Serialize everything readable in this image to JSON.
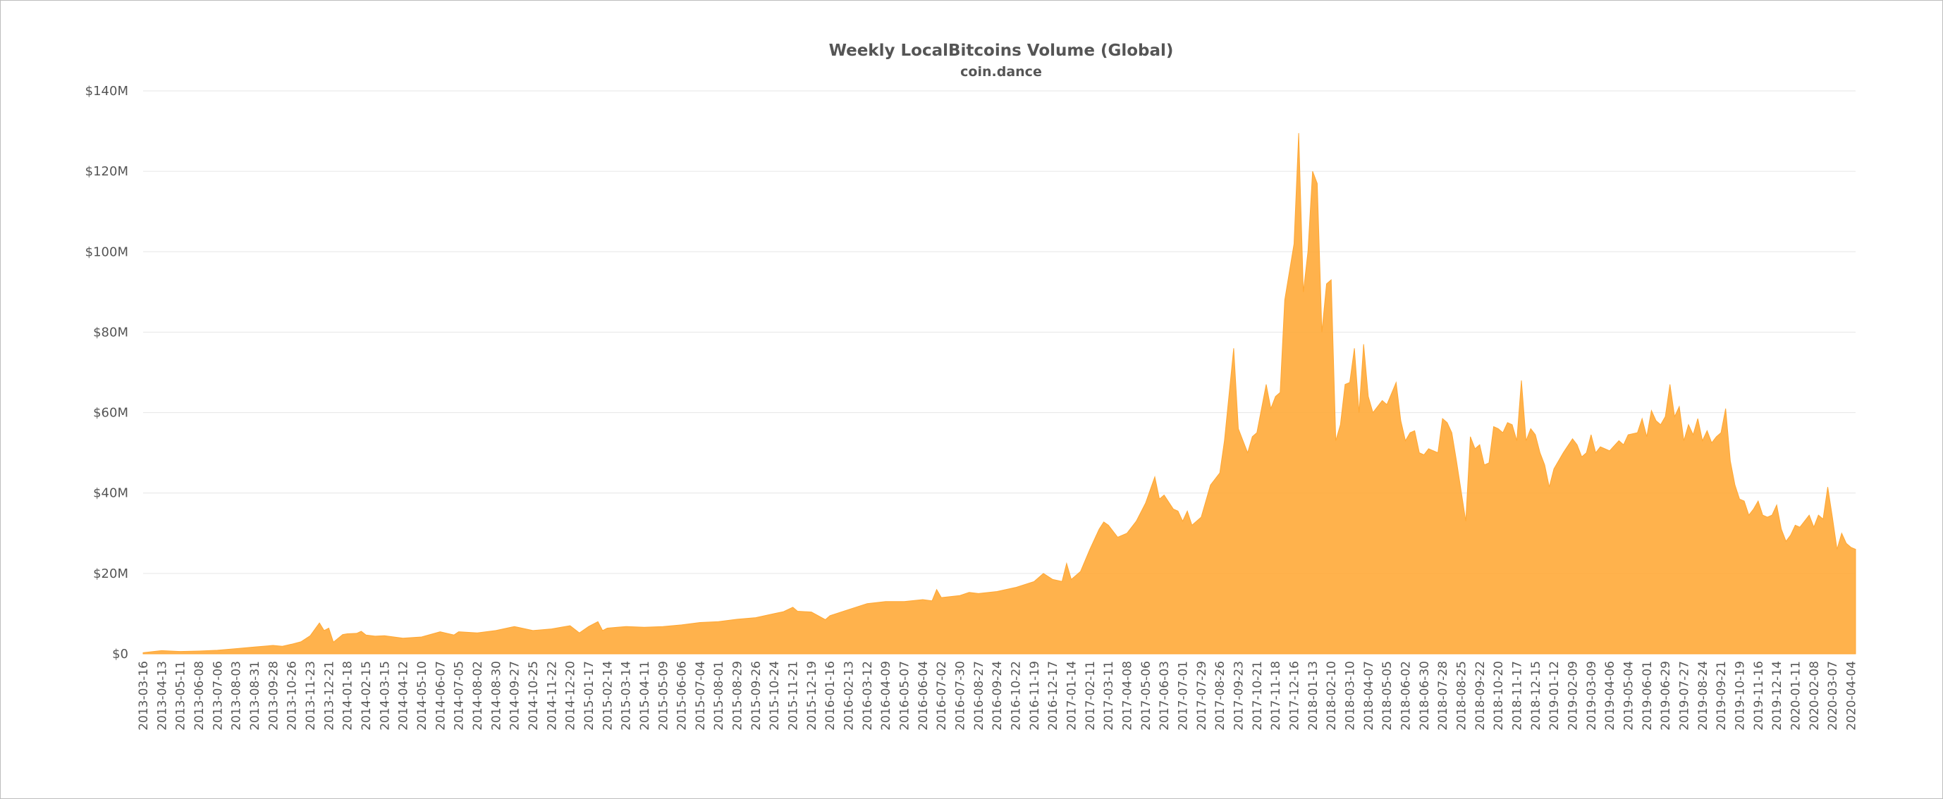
{
  "chart_data": {
    "type": "area",
    "title": "Weekly LocalBitcoins Volume (Global)",
    "subtitle": "coin.dance",
    "xlabel": "",
    "ylabel": "",
    "grid": true,
    "legend": "none",
    "color": "#ffa733",
    "ylim": [
      0,
      140000000
    ],
    "yticks": [
      0,
      20000000,
      40000000,
      60000000,
      80000000,
      100000000,
      120000000,
      140000000
    ],
    "ytick_labels": [
      "$0",
      "$20M",
      "$40M",
      "$60M",
      "$80M",
      "$100M",
      "$120M",
      "$140M"
    ],
    "x_start": "2013-03-16",
    "x_end": "2020-04-11",
    "xtick_labels": [
      "2013-03-16",
      "2013-04-13",
      "2013-05-11",
      "2013-06-08",
      "2013-07-06",
      "2013-08-03",
      "2013-08-31",
      "2013-09-28",
      "2013-10-26",
      "2013-11-23",
      "2013-12-21",
      "2014-01-18",
      "2014-02-15",
      "2014-03-15",
      "2014-04-12",
      "2014-05-10",
      "2014-06-07",
      "2014-07-05",
      "2014-08-02",
      "2014-08-30",
      "2014-09-27",
      "2014-10-25",
      "2014-11-22",
      "2014-12-20",
      "2015-01-17",
      "2015-02-14",
      "2015-03-14",
      "2015-04-11",
      "2015-05-09",
      "2015-06-06",
      "2015-07-04",
      "2015-08-01",
      "2015-08-29",
      "2015-09-26",
      "2015-10-24",
      "2015-11-21",
      "2015-12-19",
      "2016-01-16",
      "2016-02-13",
      "2016-03-12",
      "2016-04-09",
      "2016-05-07",
      "2016-06-04",
      "2016-07-02",
      "2016-07-30",
      "2016-08-27",
      "2016-09-24",
      "2016-10-22",
      "2016-11-19",
      "2016-12-17",
      "2017-01-14",
      "2017-02-11",
      "2017-03-11",
      "2017-04-08",
      "2017-05-06",
      "2017-06-03",
      "2017-07-01",
      "2017-07-29",
      "2017-08-26",
      "2017-09-23",
      "2017-10-21",
      "2017-11-18",
      "2017-12-16",
      "2018-01-13",
      "2018-02-10",
      "2018-03-10",
      "2018-04-07",
      "2018-05-05",
      "2018-06-02",
      "2018-06-30",
      "2018-07-28",
      "2018-08-25",
      "2018-09-22",
      "2018-10-20",
      "2018-11-17",
      "2018-12-15",
      "2019-01-12",
      "2019-02-09",
      "2019-03-09",
      "2019-04-06",
      "2019-05-04",
      "2019-06-01",
      "2019-06-29",
      "2019-07-27",
      "2019-08-24",
      "2019-09-21",
      "2019-10-19",
      "2019-11-16",
      "2019-12-14",
      "2020-01-11",
      "2020-02-08",
      "2020-03-07",
      "2020-04-04"
    ],
    "series": [
      {
        "name": "",
        "points": [
          [
            "2013-03-16",
            0.3
          ],
          [
            "2013-04-13",
            0.8
          ],
          [
            "2013-05-11",
            0.6
          ],
          [
            "2013-06-08",
            0.7
          ],
          [
            "2013-07-06",
            0.9
          ],
          [
            "2013-08-03",
            1.3
          ],
          [
            "2013-08-31",
            1.7
          ],
          [
            "2013-09-28",
            2.1
          ],
          [
            "2013-10-12",
            1.9
          ],
          [
            "2013-10-26",
            2.4
          ],
          [
            "2013-11-09",
            3.0
          ],
          [
            "2013-11-23",
            4.5
          ],
          [
            "2013-12-07",
            7.7
          ],
          [
            "2013-12-14",
            5.8
          ],
          [
            "2013-12-21",
            6.4
          ],
          [
            "2013-12-28",
            2.9
          ],
          [
            "2014-01-11",
            4.8
          ],
          [
            "2014-01-18",
            5.0
          ],
          [
            "2014-02-01",
            5.1
          ],
          [
            "2014-02-08",
            5.6
          ],
          [
            "2014-02-15",
            4.7
          ],
          [
            "2014-03-01",
            4.4
          ],
          [
            "2014-03-15",
            4.5
          ],
          [
            "2014-04-12",
            3.9
          ],
          [
            "2014-05-10",
            4.2
          ],
          [
            "2014-06-07",
            5.5
          ],
          [
            "2014-06-28",
            4.7
          ],
          [
            "2014-07-05",
            5.5
          ],
          [
            "2014-08-02",
            5.2
          ],
          [
            "2014-08-30",
            5.8
          ],
          [
            "2014-09-27",
            6.8
          ],
          [
            "2014-10-25",
            5.8
          ],
          [
            "2014-11-22",
            6.2
          ],
          [
            "2014-12-20",
            7.0
          ],
          [
            "2015-01-03",
            5.2
          ],
          [
            "2015-01-17",
            6.8
          ],
          [
            "2015-01-31",
            8.0
          ],
          [
            "2015-02-07",
            5.8
          ],
          [
            "2015-02-14",
            6.4
          ],
          [
            "2015-03-14",
            6.8
          ],
          [
            "2015-04-11",
            6.6
          ],
          [
            "2015-05-09",
            6.8
          ],
          [
            "2015-06-06",
            7.2
          ],
          [
            "2015-07-04",
            7.8
          ],
          [
            "2015-08-01",
            8.0
          ],
          [
            "2015-08-29",
            8.6
          ],
          [
            "2015-09-26",
            9.0
          ],
          [
            "2015-10-24",
            10.0
          ],
          [
            "2015-11-07",
            10.5
          ],
          [
            "2015-11-21",
            11.6
          ],
          [
            "2015-11-28",
            10.6
          ],
          [
            "2015-12-19",
            10.4
          ],
          [
            "2016-01-09",
            8.5
          ],
          [
            "2016-01-16",
            9.5
          ],
          [
            "2016-02-13",
            11.0
          ],
          [
            "2016-03-12",
            12.5
          ],
          [
            "2016-04-09",
            13.0
          ],
          [
            "2016-05-07",
            13.0
          ],
          [
            "2016-06-04",
            13.5
          ],
          [
            "2016-06-18",
            13.2
          ],
          [
            "2016-06-25",
            16.0
          ],
          [
            "2016-07-02",
            14.0
          ],
          [
            "2016-07-30",
            14.5
          ],
          [
            "2016-08-13",
            15.3
          ],
          [
            "2016-08-27",
            15.0
          ],
          [
            "2016-09-24",
            15.5
          ],
          [
            "2016-10-22",
            16.5
          ],
          [
            "2016-11-19",
            18.0
          ],
          [
            "2016-12-03",
            20.0
          ],
          [
            "2016-12-17",
            18.5
          ],
          [
            "2016-12-31",
            18.0
          ],
          [
            "2017-01-07",
            22.5
          ],
          [
            "2017-01-14",
            18.5
          ],
          [
            "2017-01-28",
            20.5
          ],
          [
            "2017-02-11",
            26.0
          ],
          [
            "2017-02-25",
            31.0
          ],
          [
            "2017-03-04",
            32.8
          ],
          [
            "2017-03-11",
            32.0
          ],
          [
            "2017-03-25",
            29.0
          ],
          [
            "2017-04-08",
            30.0
          ],
          [
            "2017-04-22",
            33.0
          ],
          [
            "2017-05-06",
            37.5
          ],
          [
            "2017-05-20",
            44.0
          ],
          [
            "2017-05-27",
            38.5
          ],
          [
            "2017-06-03",
            39.5
          ],
          [
            "2017-06-17",
            36.0
          ],
          [
            "2017-06-24",
            35.5
          ],
          [
            "2017-07-01",
            33.0
          ],
          [
            "2017-07-08",
            35.5
          ],
          [
            "2017-07-15",
            32.0
          ],
          [
            "2017-07-29",
            34.0
          ],
          [
            "2017-08-12",
            42.0
          ],
          [
            "2017-08-26",
            45.0
          ],
          [
            "2017-09-02",
            53.0
          ],
          [
            "2017-09-16",
            76.0
          ],
          [
            "2017-09-23",
            56.0
          ],
          [
            "2017-09-30",
            53.0
          ],
          [
            "2017-10-07",
            50.0
          ],
          [
            "2017-10-14",
            54.0
          ],
          [
            "2017-10-21",
            55.0
          ],
          [
            "2017-11-04",
            67.0
          ],
          [
            "2017-11-11",
            61.0
          ],
          [
            "2017-11-18",
            64.0
          ],
          [
            "2017-11-25",
            65.0
          ],
          [
            "2017-12-02",
            88.0
          ],
          [
            "2017-12-09",
            95.0
          ],
          [
            "2017-12-16",
            102.0
          ],
          [
            "2017-12-23",
            129.5
          ],
          [
            "2017-12-30",
            90.0
          ],
          [
            "2018-01-06",
            100.0
          ],
          [
            "2018-01-13",
            120.0
          ],
          [
            "2018-01-20",
            117.0
          ],
          [
            "2018-01-27",
            80.0
          ],
          [
            "2018-02-03",
            92.0
          ],
          [
            "2018-02-10",
            93.0
          ],
          [
            "2018-02-17",
            53.0
          ],
          [
            "2018-02-24",
            57.0
          ],
          [
            "2018-03-03",
            67.0
          ],
          [
            "2018-03-10",
            67.5
          ],
          [
            "2018-03-17",
            76.0
          ],
          [
            "2018-03-24",
            60.0
          ],
          [
            "2018-03-31",
            77.0
          ],
          [
            "2018-04-07",
            64.0
          ],
          [
            "2018-04-14",
            60.0
          ],
          [
            "2018-04-28",
            63.0
          ],
          [
            "2018-05-05",
            62.0
          ],
          [
            "2018-05-19",
            67.5
          ],
          [
            "2018-05-26",
            58.0
          ],
          [
            "2018-06-02",
            53.0
          ],
          [
            "2018-06-09",
            55.0
          ],
          [
            "2018-06-16",
            55.5
          ],
          [
            "2018-06-23",
            50.0
          ],
          [
            "2018-06-30",
            49.5
          ],
          [
            "2018-07-07",
            51.0
          ],
          [
            "2018-07-21",
            50.0
          ],
          [
            "2018-07-28",
            58.5
          ],
          [
            "2018-08-04",
            57.5
          ],
          [
            "2018-08-11",
            55.0
          ],
          [
            "2018-08-18",
            48.0
          ],
          [
            "2018-09-01",
            33.0
          ],
          [
            "2018-09-08",
            54.0
          ],
          [
            "2018-09-15",
            51.0
          ],
          [
            "2018-09-22",
            52.0
          ],
          [
            "2018-09-29",
            47.0
          ],
          [
            "2018-10-06",
            47.5
          ],
          [
            "2018-10-13",
            56.5
          ],
          [
            "2018-10-20",
            56.0
          ],
          [
            "2018-10-27",
            55.0
          ],
          [
            "2018-11-03",
            57.5
          ],
          [
            "2018-11-10",
            57.0
          ],
          [
            "2018-11-17",
            53.0
          ],
          [
            "2018-11-24",
            68.0
          ],
          [
            "2018-12-01",
            53.0
          ],
          [
            "2018-12-08",
            56.0
          ],
          [
            "2018-12-15",
            54.5
          ],
          [
            "2018-12-22",
            50.0
          ],
          [
            "2018-12-29",
            47.0
          ],
          [
            "2019-01-05",
            41.5
          ],
          [
            "2019-01-12",
            46.0
          ],
          [
            "2019-01-26",
            50.0
          ],
          [
            "2019-02-09",
            53.5
          ],
          [
            "2019-02-16",
            52.0
          ],
          [
            "2019-02-23",
            49.0
          ],
          [
            "2019-03-02",
            50.0
          ],
          [
            "2019-03-09",
            54.5
          ],
          [
            "2019-03-16",
            50.0
          ],
          [
            "2019-03-23",
            51.5
          ],
          [
            "2019-04-06",
            50.5
          ],
          [
            "2019-04-20",
            53.0
          ],
          [
            "2019-04-27",
            52.0
          ],
          [
            "2019-05-04",
            54.5
          ],
          [
            "2019-05-18",
            55.0
          ],
          [
            "2019-05-25",
            58.5
          ],
          [
            "2019-06-01",
            54.0
          ],
          [
            "2019-06-08",
            60.5
          ],
          [
            "2019-06-15",
            58.0
          ],
          [
            "2019-06-22",
            57.0
          ],
          [
            "2019-06-29",
            59.0
          ],
          [
            "2019-07-06",
            67.0
          ],
          [
            "2019-07-13",
            59.0
          ],
          [
            "2019-07-20",
            61.5
          ],
          [
            "2019-07-27",
            53.0
          ],
          [
            "2019-08-03",
            57.0
          ],
          [
            "2019-08-10",
            54.5
          ],
          [
            "2019-08-17",
            58.5
          ],
          [
            "2019-08-24",
            53.0
          ],
          [
            "2019-08-31",
            55.5
          ],
          [
            "2019-09-07",
            52.5
          ],
          [
            "2019-09-14",
            54.0
          ],
          [
            "2019-09-21",
            55.0
          ],
          [
            "2019-09-28",
            61.0
          ],
          [
            "2019-10-05",
            48.0
          ],
          [
            "2019-10-12",
            42.0
          ],
          [
            "2019-10-19",
            38.5
          ],
          [
            "2019-10-26",
            38.0
          ],
          [
            "2019-11-02",
            34.5
          ],
          [
            "2019-11-09",
            36.0
          ],
          [
            "2019-11-16",
            38.0
          ],
          [
            "2019-11-23",
            34.5
          ],
          [
            "2019-11-30",
            34.0
          ],
          [
            "2019-12-07",
            34.5
          ],
          [
            "2019-12-14",
            37.0
          ],
          [
            "2019-12-21",
            31.0
          ],
          [
            "2019-12-28",
            28.0
          ],
          [
            "2020-01-04",
            29.5
          ],
          [
            "2020-01-11",
            32.0
          ],
          [
            "2020-01-18",
            31.5
          ],
          [
            "2020-01-25",
            33.0
          ],
          [
            "2020-02-01",
            34.5
          ],
          [
            "2020-02-08",
            31.5
          ],
          [
            "2020-02-15",
            34.5
          ],
          [
            "2020-02-22",
            33.5
          ],
          [
            "2020-02-29",
            41.5
          ],
          [
            "2020-03-07",
            34.0
          ],
          [
            "2020-03-14",
            26.0
          ],
          [
            "2020-03-21",
            30.0
          ],
          [
            "2020-03-28",
            27.5
          ],
          [
            "2020-04-04",
            26.5
          ],
          [
            "2020-04-11",
            26.0
          ]
        ]
      }
    ],
    "value_unit": "USD millions"
  }
}
